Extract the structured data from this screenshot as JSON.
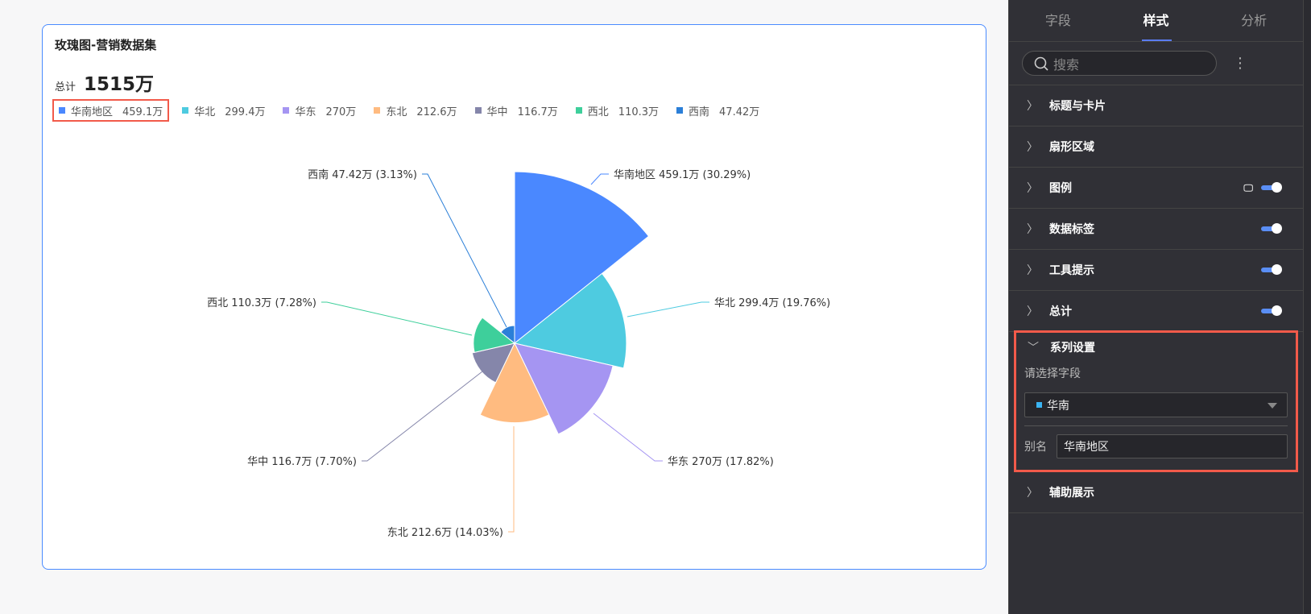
{
  "card": {
    "title": "玫瑰图-营销数据集",
    "total_label": "总计",
    "total_value": "1515万"
  },
  "chart_data": {
    "type": "rose",
    "title": "玫瑰图-营销数据集",
    "categories": [
      "华南地区",
      "华北",
      "华东",
      "东北",
      "华中",
      "西北",
      "西南"
    ],
    "values": [
      459.1,
      299.4,
      270,
      212.6,
      116.7,
      110.3,
      47.42
    ],
    "value_labels": [
      "459.1万",
      "299.4万",
      "270万",
      "212.6万",
      "116.7万",
      "110.3万",
      "47.42万"
    ],
    "percent_labels": [
      "30.29%",
      "19.76%",
      "17.82%",
      "14.03%",
      "7.70%",
      "7.28%",
      "3.13%"
    ],
    "colors": [
      "#4a88ff",
      "#4ecbe0",
      "#a595f2",
      "#ffbb80",
      "#8586aa",
      "#3ecf9b",
      "#2b7fd8"
    ],
    "data_labels": [
      "华南地区 459.1万 (30.29%)",
      "华北 299.4万 (19.76%)",
      "华东 270万 (17.82%)",
      "东北 212.6万 (14.03%)",
      "华中 116.7万 (7.70%)",
      "西北 110.3万 (7.28%)",
      "西南 47.42万 (3.13%)"
    ],
    "legend_placement": "top-left"
  },
  "panel": {
    "tabs": [
      {
        "label": "字段"
      },
      {
        "label": "样式"
      },
      {
        "label": "分析"
      }
    ],
    "active_tab": "样式",
    "search_placeholder": "搜索",
    "sections": [
      {
        "label": "标题与卡片"
      },
      {
        "label": "扇形区域"
      },
      {
        "label": "图例",
        "toggle": true
      },
      {
        "label": "数据标签",
        "toggle": true
      },
      {
        "label": "工具提示",
        "toggle": true
      },
      {
        "label": "总计",
        "toggle": true
      }
    ],
    "series": {
      "label": "系列设置",
      "field_label": "请选择字段",
      "selected": "华南",
      "selected_color": "#3ab4f2",
      "alias_label": "别名",
      "alias_value": "华南地区"
    },
    "last_section": "辅助展示"
  }
}
